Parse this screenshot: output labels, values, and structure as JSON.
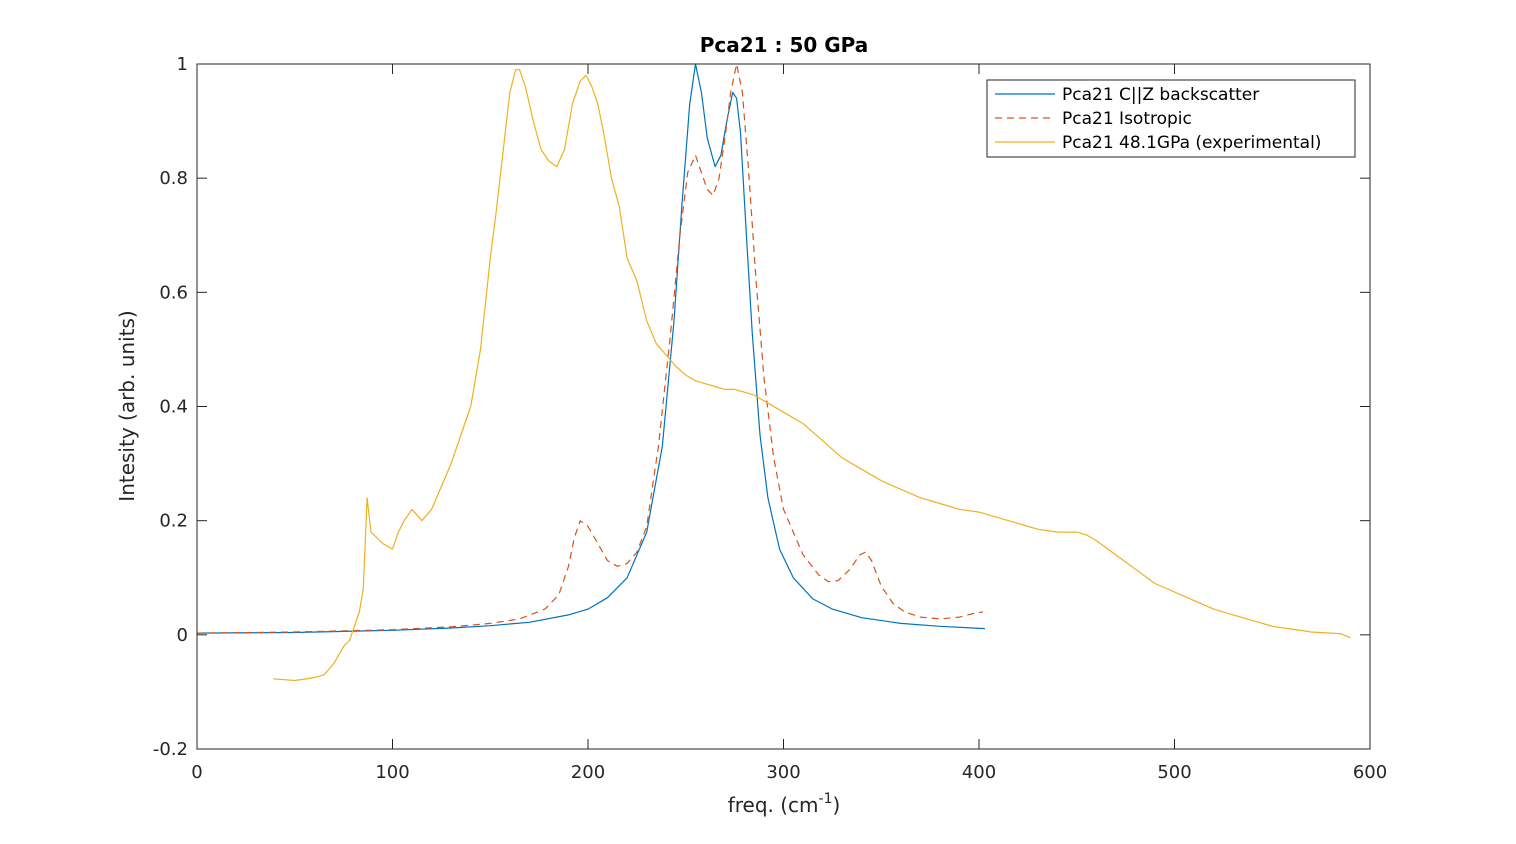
{
  "chart_data": {
    "type": "line",
    "title": "Pca21 : 50 GPa",
    "xlabel": "freq. (cm",
    "xlabel_sup": "-1",
    "xlabel_tail": ")",
    "ylabel": "Intesity (arb. units)",
    "xlim": [
      0,
      600
    ],
    "ylim": [
      -0.2,
      1
    ],
    "xticks": [
      0,
      100,
      200,
      300,
      400,
      500,
      600
    ],
    "yticks": [
      -0.2,
      0,
      0.2,
      0.4,
      0.6,
      0.8,
      1
    ],
    "xtick_labels": [
      "0",
      "100",
      "200",
      "300",
      "400",
      "500",
      "600"
    ],
    "ytick_labels": [
      "-0.2",
      "0",
      "0.2",
      "0.4",
      "0.6",
      "0.8",
      "1"
    ],
    "grid": false,
    "legend_position": "top-right",
    "series": [
      {
        "name": "Pca21 C||Z backscatter",
        "color": "#0072BD",
        "style": "solid",
        "x": [
          0,
          50,
          100,
          130,
          150,
          170,
          190,
          200,
          210,
          220,
          230,
          238,
          244,
          248,
          252,
          255,
          258,
          261,
          265,
          268,
          271,
          274,
          276,
          278,
          281,
          284,
          288,
          292,
          298,
          305,
          315,
          325,
          340,
          360,
          380,
          403
        ],
        "y": [
          0.003,
          0.004,
          0.008,
          0.012,
          0.016,
          0.022,
          0.035,
          0.045,
          0.065,
          0.1,
          0.18,
          0.33,
          0.55,
          0.75,
          0.93,
          1.0,
          0.95,
          0.87,
          0.82,
          0.84,
          0.9,
          0.95,
          0.94,
          0.88,
          0.7,
          0.53,
          0.35,
          0.24,
          0.15,
          0.1,
          0.063,
          0.045,
          0.03,
          0.02,
          0.015,
          0.011
        ]
      },
      {
        "name": "Pca21 Isotropic",
        "color": "#D95319",
        "style": "dashed",
        "x": [
          0,
          50,
          100,
          130,
          150,
          165,
          178,
          185,
          190,
          193,
          196,
          200,
          205,
          210,
          215,
          220,
          225,
          230,
          236,
          242,
          247,
          251,
          255,
          258,
          261,
          264,
          267,
          270,
          273,
          276,
          279,
          282,
          286,
          290,
          295,
          300,
          310,
          318,
          323,
          328,
          334,
          339,
          342,
          345,
          350,
          356,
          362,
          370,
          380,
          390,
          398,
          402
        ],
        "y": [
          0.003,
          0.005,
          0.009,
          0.014,
          0.02,
          0.028,
          0.045,
          0.07,
          0.12,
          0.17,
          0.2,
          0.19,
          0.16,
          0.13,
          0.12,
          0.125,
          0.145,
          0.19,
          0.33,
          0.52,
          0.7,
          0.81,
          0.84,
          0.81,
          0.78,
          0.77,
          0.8,
          0.87,
          0.95,
          1.0,
          0.95,
          0.82,
          0.62,
          0.45,
          0.31,
          0.22,
          0.14,
          0.105,
          0.093,
          0.095,
          0.115,
          0.14,
          0.145,
          0.13,
          0.085,
          0.055,
          0.04,
          0.031,
          0.028,
          0.031,
          0.038,
          0.04
        ]
      },
      {
        "name": "Pca21 48.1GPa (experimental)",
        "color": "#EDB120",
        "style": "solid",
        "x": [
          39,
          50,
          60,
          65,
          70,
          75,
          78,
          80,
          83,
          85,
          87,
          89,
          92,
          95,
          100,
          103,
          106,
          110,
          115,
          120,
          125,
          130,
          135,
          140,
          145,
          150,
          153,
          156,
          160,
          163,
          165,
          168,
          172,
          176,
          180,
          184,
          188,
          192,
          196,
          199,
          202,
          205,
          208,
          212,
          216,
          220,
          225,
          230,
          235,
          240,
          245,
          250,
          255,
          260,
          265,
          270,
          275,
          280,
          285,
          290,
          300,
          310,
          320,
          330,
          340,
          350,
          360,
          370,
          380,
          390,
          400,
          410,
          420,
          430,
          440,
          450,
          455,
          460,
          470,
          480,
          490,
          500,
          510,
          520,
          530,
          540,
          550,
          560,
          570,
          580,
          585,
          590
        ],
        "y": [
          -0.077,
          -0.08,
          -0.075,
          -0.07,
          -0.05,
          -0.02,
          -0.01,
          0.01,
          0.04,
          0.08,
          0.24,
          0.18,
          0.17,
          0.16,
          0.15,
          0.18,
          0.2,
          0.22,
          0.2,
          0.22,
          0.26,
          0.3,
          0.35,
          0.4,
          0.5,
          0.66,
          0.74,
          0.83,
          0.95,
          0.99,
          0.99,
          0.96,
          0.9,
          0.85,
          0.83,
          0.82,
          0.85,
          0.93,
          0.97,
          0.98,
          0.96,
          0.93,
          0.88,
          0.8,
          0.75,
          0.66,
          0.62,
          0.55,
          0.51,
          0.49,
          0.47,
          0.455,
          0.445,
          0.44,
          0.435,
          0.43,
          0.43,
          0.425,
          0.42,
          0.41,
          0.39,
          0.37,
          0.34,
          0.31,
          0.29,
          0.27,
          0.255,
          0.24,
          0.23,
          0.22,
          0.215,
          0.205,
          0.195,
          0.185,
          0.18,
          0.18,
          0.175,
          0.165,
          0.14,
          0.115,
          0.09,
          0.075,
          0.06,
          0.045,
          0.035,
          0.025,
          0.015,
          0.01,
          0.005,
          0.003,
          0.002,
          -0.005
        ]
      }
    ]
  }
}
